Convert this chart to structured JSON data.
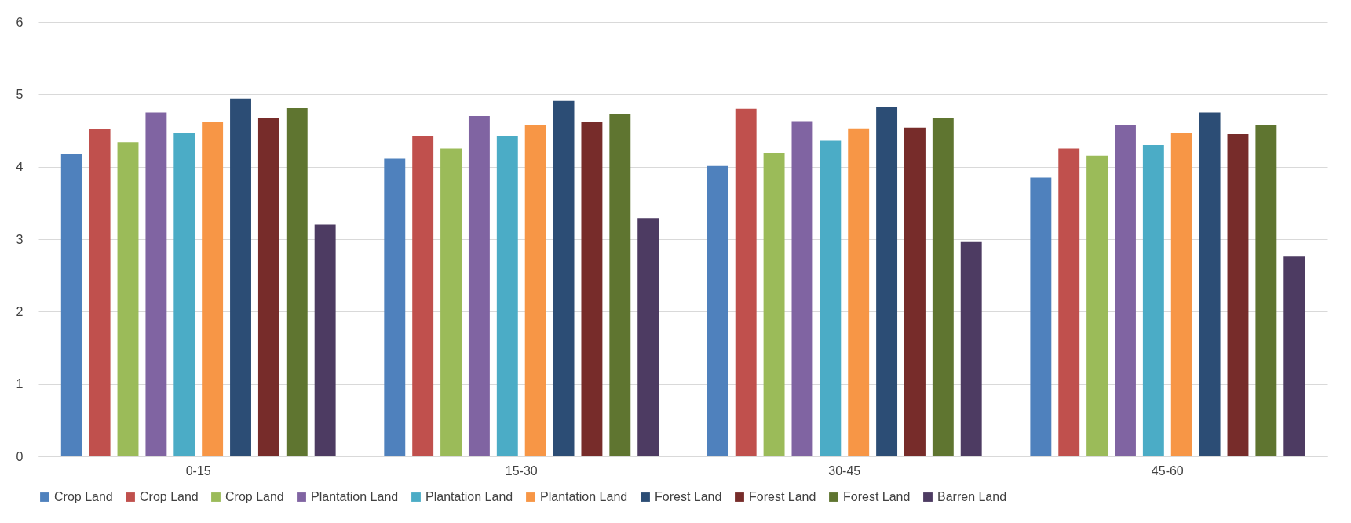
{
  "chart_data": {
    "type": "bar",
    "categories": [
      "0-15",
      "15-30",
      "30-45",
      "45-60"
    ],
    "series": [
      {
        "name": "Crop Land",
        "color": "#4f81bd",
        "values": [
          4.17,
          4.11,
          4.01,
          3.85
        ]
      },
      {
        "name": "Crop Land",
        "color": "#c0504d",
        "values": [
          4.52,
          4.43,
          4.8,
          4.25
        ]
      },
      {
        "name": "Crop Land",
        "color": "#9bbb59",
        "values": [
          4.34,
          4.25,
          4.19,
          4.15
        ]
      },
      {
        "name": "Plantation Land",
        "color": "#8064a2",
        "values": [
          4.75,
          4.7,
          4.63,
          4.58
        ]
      },
      {
        "name": "Plantation Land",
        "color": "#4bacc6",
        "values": [
          4.47,
          4.42,
          4.36,
          4.3
        ]
      },
      {
        "name": "Plantation Land",
        "color": "#f79646",
        "values": [
          4.62,
          4.57,
          4.53,
          4.47
        ]
      },
      {
        "name": "Forest Land",
        "color": "#2c4d75",
        "values": [
          4.94,
          4.91,
          4.82,
          4.75
        ]
      },
      {
        "name": "Forest Land",
        "color": "#772c2a",
        "values": [
          4.67,
          4.62,
          4.54,
          4.45
        ]
      },
      {
        "name": "Forest Land",
        "color": "#5f7530",
        "values": [
          4.81,
          4.73,
          4.67,
          4.57
        ]
      },
      {
        "name": "Barren Land",
        "color": "#4d3b62",
        "values": [
          3.2,
          3.29,
          2.97,
          2.76
        ]
      }
    ],
    "ylim": [
      0,
      6
    ],
    "yticks": [
      0,
      1,
      2,
      3,
      4,
      5,
      6
    ],
    "grid": "y",
    "legend": "bottom"
  }
}
